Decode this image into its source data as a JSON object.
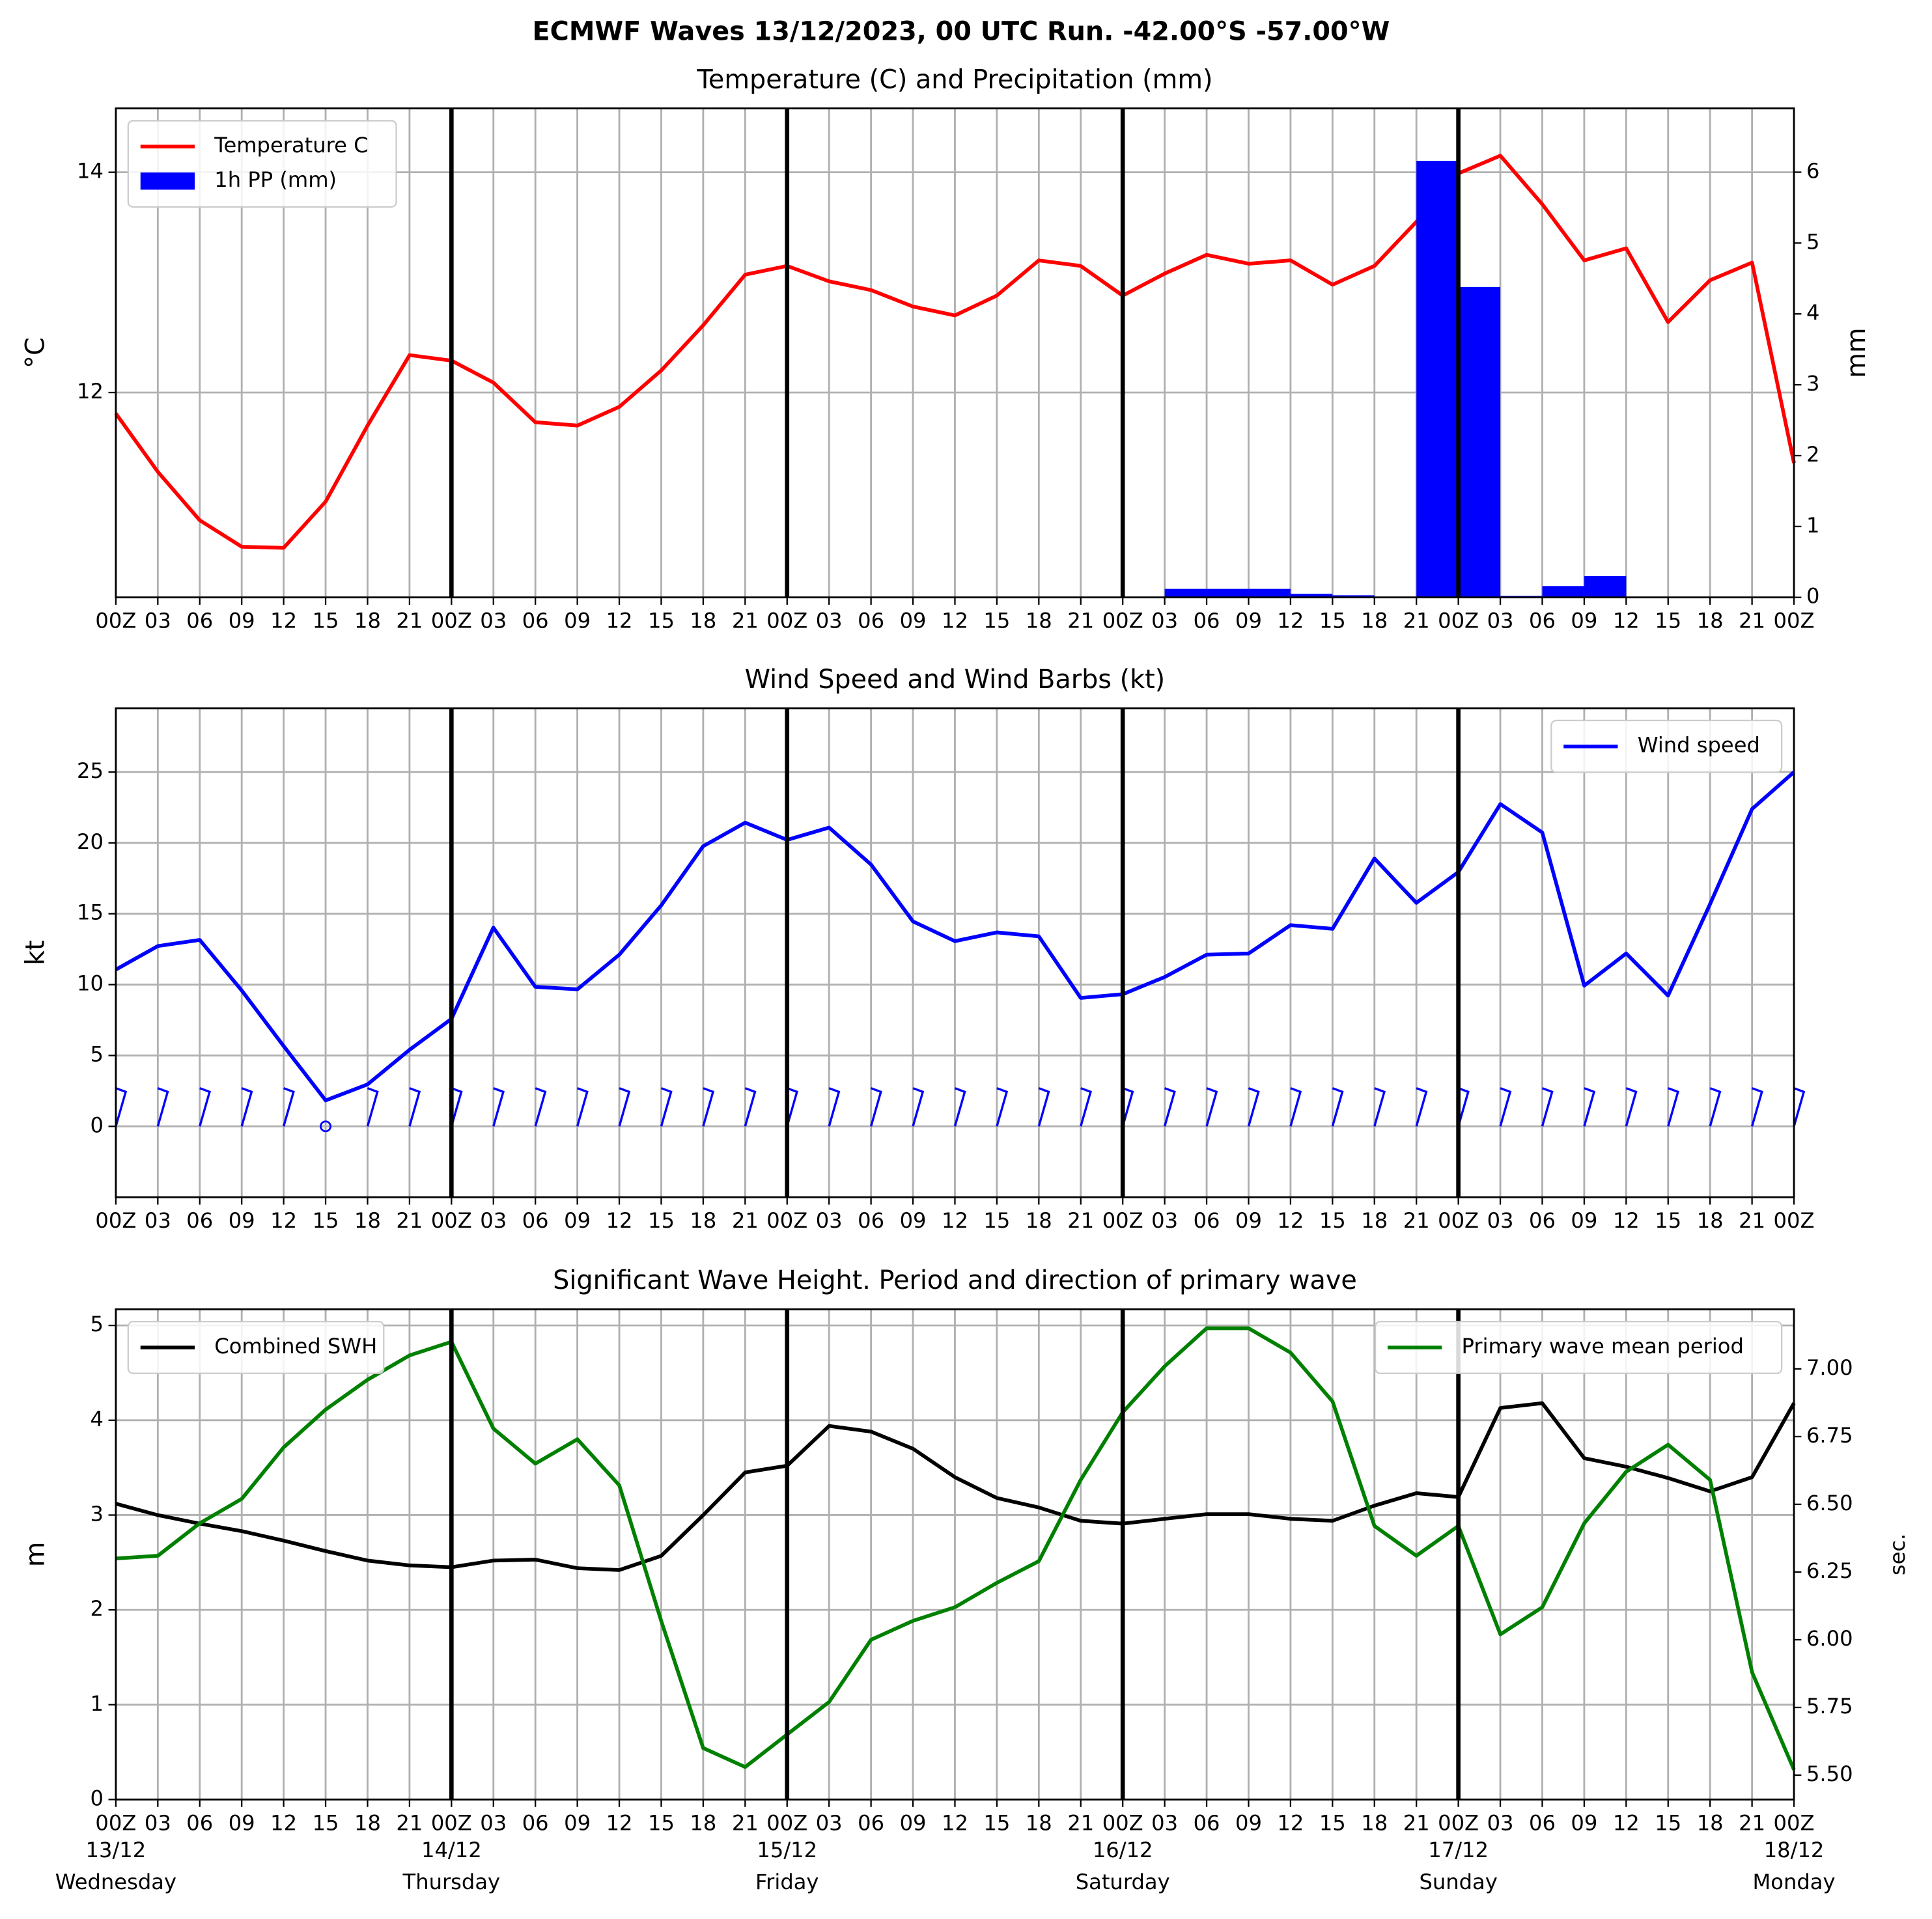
{
  "title": "ECMWF Waves 13/12/2023, 00 UTC Run. -42.00°S -57.00°W",
  "day_labels": [
    "13/12",
    "14/12",
    "15/12",
    "16/12",
    "17/12",
    "18/12"
  ],
  "weekdays": [
    "Wednesday",
    "Thursday",
    "Friday",
    "Saturday",
    "Sunday",
    "Monday"
  ],
  "chart_data": [
    {
      "type": "line",
      "title": "Temperature (C) and Precipitation (mm)",
      "y_label": "°C",
      "y2_label": "mm",
      "categories": [
        "00Z",
        "03",
        "06",
        "09",
        "12",
        "15",
        "18",
        "21",
        "00Z",
        "03",
        "06",
        "09",
        "12",
        "15",
        "18",
        "21",
        "00Z",
        "03",
        "06",
        "09",
        "12",
        "15",
        "18",
        "21",
        "00Z",
        "03",
        "06",
        "09",
        "12",
        "15",
        "18",
        "21",
        "00Z",
        "03",
        "06",
        "09",
        "12",
        "15",
        "18",
        "21",
        "00Z"
      ],
      "series": [
        {
          "name": "Temperature C",
          "color": "#ff0000",
          "values": [
            11.81,
            11.28,
            10.84,
            10.6,
            10.59,
            11.01,
            11.7,
            12.34,
            12.29,
            12.09,
            11.73,
            11.7,
            11.87,
            12.2,
            12.61,
            13.07,
            13.15,
            13.01,
            12.93,
            12.78,
            12.7,
            12.88,
            13.2,
            13.15,
            12.88,
            13.08,
            13.25,
            13.17,
            13.2,
            12.98,
            13.15,
            13.55,
            13.99,
            14.15,
            13.71,
            13.2,
            13.31,
            12.64,
            13.02,
            13.18,
            11.36
          ]
        },
        {
          "name": "1h PP (mm)",
          "color": "#0000ff",
          "type": "bar",
          "axis": "y2",
          "values": [
            0,
            0,
            0,
            0,
            0,
            0,
            0,
            0,
            0,
            0,
            0,
            0,
            0,
            0,
            0,
            0,
            0,
            0,
            0,
            0,
            0,
            0,
            0,
            0,
            0,
            0.12,
            0.12,
            0.12,
            0.05,
            0.03,
            0,
            6.16,
            4.38,
            0.02,
            0.16,
            0.3,
            0,
            0,
            0,
            0,
            0
          ]
        }
      ],
      "ylim": [
        10.14,
        14.58
      ],
      "yticks": [
        12,
        14
      ],
      "y2lim": [
        0,
        6.9
      ],
      "y2ticks": [
        0,
        1,
        2,
        3,
        4,
        5,
        6
      ],
      "grid": true,
      "legend": "upper left"
    },
    {
      "type": "line",
      "title": "Wind Speed and Wind Barbs (kt)",
      "y_label": "kt",
      "categories": [
        "00Z",
        "03",
        "06",
        "09",
        "12",
        "15",
        "18",
        "21",
        "00Z",
        "03",
        "06",
        "09",
        "12",
        "15",
        "18",
        "21",
        "00Z",
        "03",
        "06",
        "09",
        "12",
        "15",
        "18",
        "21",
        "00Z",
        "03",
        "06",
        "09",
        "12",
        "15",
        "18",
        "21",
        "00Z",
        "03",
        "06",
        "09",
        "12",
        "15",
        "18",
        "21",
        "00Z"
      ],
      "series": [
        {
          "name": "Wind speed",
          "color": "#0000ff",
          "values": [
            11.06,
            12.72,
            13.15,
            9.58,
            5.66,
            1.83,
            2.96,
            5.4,
            7.58,
            14.02,
            9.84,
            9.67,
            12.11,
            15.59,
            19.77,
            21.43,
            20.21,
            21.08,
            18.47,
            14.46,
            13.07,
            13.68,
            13.41,
            9.06,
            9.32,
            10.54,
            12.11,
            12.2,
            14.2,
            13.94,
            18.9,
            15.77,
            17.94,
            22.74,
            20.73,
            9.93,
            12.2,
            9.23,
            15.68,
            22.39,
            25.0
          ]
        }
      ],
      "ylim": [
        -5,
        29.5
      ],
      "yticks": [
        0,
        5,
        10,
        15,
        20,
        25
      ],
      "grid": true,
      "legend": "upper right"
    },
    {
      "type": "line",
      "title": "Significant Wave Height. Period and direction of primary wave",
      "y_label": "m",
      "y2_label": "sec.",
      "categories": [
        "00Z",
        "03",
        "06",
        "09",
        "12",
        "15",
        "18",
        "21",
        "00Z",
        "03",
        "06",
        "09",
        "12",
        "15",
        "18",
        "21",
        "00Z",
        "03",
        "06",
        "09",
        "12",
        "15",
        "18",
        "21",
        "00Z",
        "03",
        "06",
        "09",
        "12",
        "15",
        "18",
        "21",
        "00Z",
        "03",
        "06",
        "09",
        "12",
        "15",
        "18",
        "21",
        "00Z"
      ],
      "series": [
        {
          "name": "Combined SWH",
          "color": "#000000",
          "legend": "upper left",
          "values": [
            3.12,
            3.0,
            2.91,
            2.83,
            2.73,
            2.62,
            2.52,
            2.47,
            2.45,
            2.52,
            2.53,
            2.44,
            2.42,
            2.57,
            3.0,
            3.45,
            3.52,
            3.94,
            3.88,
            3.7,
            3.4,
            3.18,
            3.08,
            2.94,
            2.91,
            2.96,
            3.01,
            3.01,
            2.96,
            2.94,
            3.1,
            3.23,
            3.19,
            4.13,
            4.18,
            3.6,
            3.51,
            3.39,
            3.25,
            3.4,
            4.18
          ]
        },
        {
          "name": "Primary wave mean period",
          "color": "#008000",
          "axis": "y2",
          "legend": "upper right",
          "values": [
            6.3,
            6.31,
            6.43,
            6.52,
            6.71,
            6.85,
            6.96,
            7.05,
            7.1,
            6.78,
            6.65,
            6.74,
            6.57,
            6.07,
            5.6,
            5.53,
            5.65,
            5.77,
            6.0,
            6.07,
            6.12,
            6.21,
            6.29,
            6.59,
            6.84,
            7.01,
            7.15,
            7.15,
            7.06,
            6.88,
            6.42,
            6.31,
            6.42,
            6.02,
            6.12,
            6.43,
            6.62,
            6.72,
            6.59,
            5.88,
            5.52
          ]
        }
      ],
      "ylim": [
        0,
        5.17
      ],
      "yticks": [
        0,
        1,
        2,
        3,
        4,
        5
      ],
      "y2lim": [
        5.41,
        7.22
      ],
      "y2ticks": [
        {
          "value": 5.5,
          "label": "5.50"
        },
        5.75,
        {
          "value": 6,
          "label": "6.00"
        },
        6.25,
        {
          "value": 6.5,
          "label": "6.50"
        },
        6.75,
        {
          "value": 7,
          "label": "7.00"
        }
      ],
      "grid": true
    }
  ]
}
